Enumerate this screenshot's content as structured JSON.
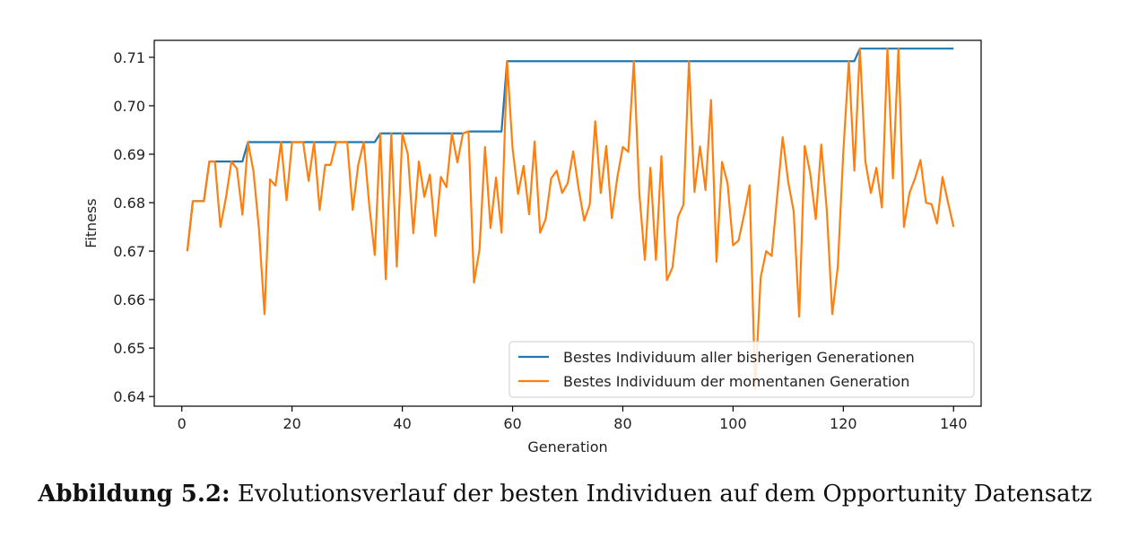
{
  "chart_data": {
    "type": "line",
    "xlabel": "Generation",
    "ylabel": "Fitness",
    "xlim": [
      -5,
      145
    ],
    "ylim": [
      0.638,
      0.7135
    ],
    "xticks": [
      0,
      20,
      40,
      60,
      80,
      100,
      120,
      140
    ],
    "xtick_labels": [
      "0",
      "20",
      "40",
      "60",
      "80",
      "100",
      "120",
      "140"
    ],
    "yticks": [
      0.64,
      0.65,
      0.66,
      0.67,
      0.68,
      0.69,
      0.7,
      0.71
    ],
    "ytick_labels": [
      "0.64",
      "0.65",
      "0.66",
      "0.67",
      "0.68",
      "0.69",
      "0.70",
      "0.71"
    ],
    "legend_position": "lower-right",
    "grid": false,
    "series": [
      {
        "name": "Bestes Individuum aller bisherigen Generationen",
        "color": "#1f77b4",
        "x": [
          1,
          2,
          3,
          4,
          5,
          6,
          7,
          8,
          9,
          10,
          11,
          12,
          13,
          14,
          15,
          16,
          17,
          18,
          19,
          20,
          21,
          22,
          23,
          24,
          25,
          26,
          27,
          28,
          29,
          30,
          31,
          32,
          33,
          34,
          35,
          36,
          37,
          38,
          39,
          40,
          41,
          42,
          43,
          44,
          45,
          46,
          47,
          48,
          49,
          50,
          51,
          52,
          53,
          54,
          55,
          56,
          57,
          58,
          59,
          60,
          61,
          62,
          63,
          64,
          65,
          66,
          67,
          68,
          69,
          70,
          71,
          72,
          73,
          74,
          75,
          76,
          77,
          78,
          79,
          80,
          81,
          82,
          83,
          84,
          85,
          86,
          87,
          88,
          89,
          90,
          91,
          92,
          93,
          94,
          95,
          96,
          97,
          98,
          99,
          100,
          101,
          102,
          103,
          104,
          105,
          106,
          107,
          108,
          109,
          110,
          111,
          112,
          113,
          114,
          115,
          116,
          117,
          118,
          119,
          120,
          121,
          122,
          123,
          124,
          125,
          126,
          127,
          128,
          129,
          130,
          131,
          132,
          133,
          134,
          135,
          136,
          137,
          138,
          139,
          140
        ],
        "y": [
          0.67,
          0.6803,
          0.6803,
          0.6803,
          0.6885,
          0.6885,
          0.6885,
          0.6885,
          0.6885,
          0.6885,
          0.6885,
          0.6925,
          0.6925,
          0.6925,
          0.6925,
          0.6925,
          0.6925,
          0.6925,
          0.6925,
          0.6925,
          0.6925,
          0.6925,
          0.6925,
          0.6925,
          0.6925,
          0.6925,
          0.6925,
          0.6925,
          0.6925,
          0.6925,
          0.6925,
          0.6925,
          0.6925,
          0.6925,
          0.6925,
          0.6943,
          0.6943,
          0.6943,
          0.6943,
          0.6943,
          0.6943,
          0.6943,
          0.6943,
          0.6943,
          0.6943,
          0.6943,
          0.6943,
          0.6943,
          0.6943,
          0.6943,
          0.6943,
          0.6947,
          0.6947,
          0.6947,
          0.6947,
          0.6947,
          0.6947,
          0.6947,
          0.7092,
          0.7092,
          0.7092,
          0.7092,
          0.7092,
          0.7092,
          0.7092,
          0.7092,
          0.7092,
          0.7092,
          0.7092,
          0.7092,
          0.7092,
          0.7092,
          0.7092,
          0.7092,
          0.7092,
          0.7092,
          0.7092,
          0.7092,
          0.7092,
          0.7092,
          0.7092,
          0.7092,
          0.7092,
          0.7092,
          0.7092,
          0.7092,
          0.7092,
          0.7092,
          0.7092,
          0.7092,
          0.7092,
          0.7092,
          0.7092,
          0.7092,
          0.7092,
          0.7092,
          0.7092,
          0.7092,
          0.7092,
          0.7092,
          0.7092,
          0.7092,
          0.7092,
          0.7092,
          0.7092,
          0.7092,
          0.7092,
          0.7092,
          0.7092,
          0.7092,
          0.7092,
          0.7092,
          0.7092,
          0.7092,
          0.7092,
          0.7092,
          0.7092,
          0.7092,
          0.7092,
          0.7092,
          0.7092,
          0.7092,
          0.7118,
          0.7118,
          0.7118,
          0.7118,
          0.7118,
          0.7118,
          0.7118,
          0.7118,
          0.7118,
          0.7118,
          0.7118,
          0.7118,
          0.7118,
          0.7118,
          0.7118,
          0.7118,
          0.7118,
          0.7118
        ]
      },
      {
        "name": "Bestes Individuum der momentanen Generation",
        "color": "#ff7f0e",
        "x": [
          1,
          2,
          3,
          4,
          5,
          6,
          7,
          8,
          9,
          10,
          11,
          12,
          13,
          14,
          15,
          16,
          17,
          18,
          19,
          20,
          21,
          22,
          23,
          24,
          25,
          26,
          27,
          28,
          29,
          30,
          31,
          32,
          33,
          34,
          35,
          36,
          37,
          38,
          39,
          40,
          41,
          42,
          43,
          44,
          45,
          46,
          47,
          48,
          49,
          50,
          51,
          52,
          53,
          54,
          55,
          56,
          57,
          58,
          59,
          60,
          61,
          62,
          63,
          64,
          65,
          66,
          67,
          68,
          69,
          70,
          71,
          72,
          73,
          74,
          75,
          76,
          77,
          78,
          79,
          80,
          81,
          82,
          83,
          84,
          85,
          86,
          87,
          88,
          89,
          90,
          91,
          92,
          93,
          94,
          95,
          96,
          97,
          98,
          99,
          100,
          101,
          102,
          103,
          104,
          105,
          106,
          107,
          108,
          109,
          110,
          111,
          112,
          113,
          114,
          115,
          116,
          117,
          118,
          119,
          120,
          121,
          122,
          123,
          124,
          125,
          126,
          127,
          128,
          129,
          130,
          131,
          132,
          133,
          134,
          135,
          136,
          137,
          138,
          139,
          140
        ],
        "y": [
          0.67,
          0.6803,
          0.6803,
          0.6803,
          0.6885,
          0.6885,
          0.675,
          0.681,
          0.6885,
          0.687,
          0.6775,
          0.6925,
          0.6865,
          0.6745,
          0.657,
          0.6848,
          0.6835,
          0.6925,
          0.6805,
          0.6925,
          0.6925,
          0.6925,
          0.6845,
          0.6925,
          0.6785,
          0.6878,
          0.6878,
          0.6925,
          0.6925,
          0.6925,
          0.6785,
          0.6878,
          0.6925,
          0.6795,
          0.6692,
          0.6943,
          0.6642,
          0.6943,
          0.6668,
          0.6943,
          0.69,
          0.6737,
          0.6885,
          0.6812,
          0.6858,
          0.6731,
          0.6853,
          0.6832,
          0.6943,
          0.6883,
          0.6943,
          0.6947,
          0.6635,
          0.6703,
          0.6915,
          0.6748,
          0.6852,
          0.6738,
          0.7092,
          0.6912,
          0.6818,
          0.6876,
          0.6776,
          0.6926,
          0.6738,
          0.6766,
          0.685,
          0.6866,
          0.682,
          0.684,
          0.6906,
          0.6828,
          0.6763,
          0.6796,
          0.6968,
          0.682,
          0.6917,
          0.6768,
          0.6852,
          0.6915,
          0.6905,
          0.7092,
          0.6818,
          0.6682,
          0.6872,
          0.6682,
          0.6896,
          0.664,
          0.6666,
          0.677,
          0.6796,
          0.7092,
          0.6822,
          0.6916,
          0.6826,
          0.7012,
          0.6678,
          0.6884,
          0.684,
          0.6712,
          0.6722,
          0.6775,
          0.6836,
          0.6415,
          0.6645,
          0.67,
          0.669,
          0.6813,
          0.6935,
          0.6843,
          0.6782,
          0.6565,
          0.6917,
          0.686,
          0.6766,
          0.692,
          0.6785,
          0.657,
          0.6668,
          0.6905,
          0.7092,
          0.6866,
          0.7118,
          0.6885,
          0.682,
          0.6872,
          0.679,
          0.7118,
          0.685,
          0.7118,
          0.675,
          0.682,
          0.685,
          0.6888,
          0.68,
          0.6797,
          0.6757,
          0.6853,
          0.68,
          0.675
        ]
      }
    ]
  },
  "caption": {
    "prefix": "Abbildung 5.2:",
    "text": " Evolutionsverlauf der besten Individuen auf dem Opportunity Datensatz"
  }
}
